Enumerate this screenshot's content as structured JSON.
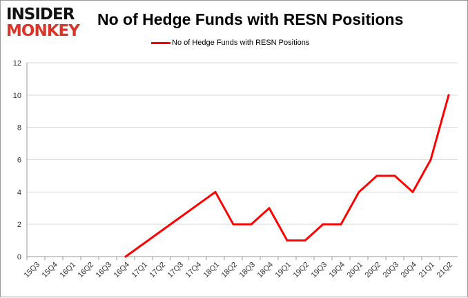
{
  "logo": {
    "line1": "INSIDER",
    "line2": "MONKEY"
  },
  "chart_data": {
    "type": "line",
    "title": "No of Hedge Funds with RESN Positions",
    "xlabel": "",
    "ylabel": "",
    "categories": [
      "15Q3",
      "15Q4",
      "16Q1",
      "16Q2",
      "16Q3",
      "16Q4",
      "17Q1",
      "17Q2",
      "17Q3",
      "17Q4",
      "18Q1",
      "18Q2",
      "18Q3",
      "18Q4",
      "19Q1",
      "19Q2",
      "19Q3",
      "19Q4",
      "20Q1",
      "20Q2",
      "20Q3",
      "20Q4",
      "21Q1",
      "21Q2"
    ],
    "series": [
      {
        "name": "No of Hedge Funds with RESN Positions",
        "color": "#ff0000",
        "values": [
          null,
          null,
          null,
          null,
          null,
          0,
          null,
          null,
          null,
          null,
          4,
          2,
          2,
          3,
          1,
          1,
          2,
          2,
          4,
          5,
          5,
          4,
          6,
          10
        ]
      }
    ],
    "ylim": [
      0,
      12
    ],
    "yticks": [
      0,
      2,
      4,
      6,
      8,
      10,
      12
    ],
    "grid": true,
    "legend": "top"
  }
}
